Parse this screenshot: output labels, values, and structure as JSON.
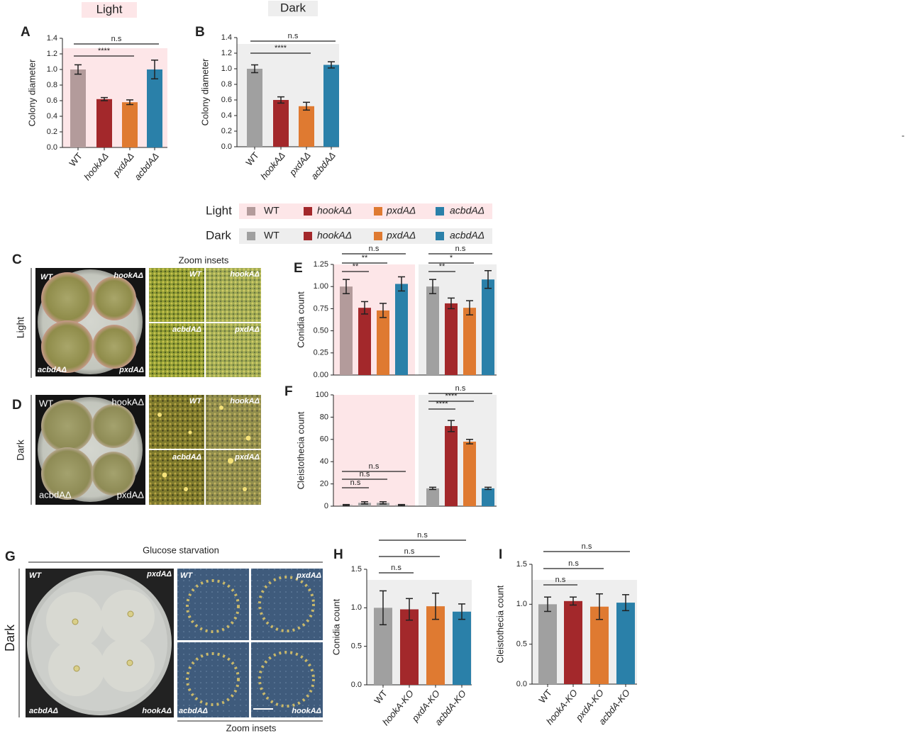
{
  "headers": [
    "Light",
    "Dark"
  ],
  "stray": "-",
  "legend": {
    "rows": [
      {
        "label": "Light",
        "background": "#fde6e8",
        "entries": [
          {
            "name": "WT",
            "color": "#b39b9b"
          },
          {
            "name": "hookAΔ",
            "color": "#a3282b"
          },
          {
            "name": "pxdAΔ",
            "color": "#df7a31"
          },
          {
            "name": "acbdAΔ",
            "color": "#2a80a9"
          }
        ]
      },
      {
        "label": "Dark",
        "background": "#eeeeee",
        "entries": [
          {
            "name": "WT",
            "color": "#a0a0a0"
          },
          {
            "name": "hookAΔ",
            "color": "#a3282b"
          },
          {
            "name": "pxdAΔ",
            "color": "#df7a31"
          },
          {
            "name": "acbdAΔ",
            "color": "#2a80a9"
          }
        ]
      }
    ]
  },
  "photos": {
    "C": {
      "panel": "C",
      "side": "Light",
      "plate": [
        "WT",
        "hookAΔ",
        "acbdAΔ",
        "pxdAΔ"
      ],
      "insets_title": "Zoom insets",
      "insets": [
        "WT",
        "hookAΔ",
        "acbdAΔ",
        "pxdAΔ"
      ]
    },
    "D": {
      "panel": "D",
      "side": "Dark",
      "plate": [
        "WT",
        "hookAΔ",
        "acbdAΔ",
        "pxdAΔ"
      ],
      "insets": [
        "WT",
        "hookAΔ",
        "acbdAΔ",
        "pxdAΔ"
      ]
    },
    "G": {
      "panel": "G",
      "title": "Glucose starvation",
      "side": "Dark",
      "plate": [
        "WT",
        "pxdAΔ",
        "acbdAΔ",
        "hookAΔ"
      ],
      "insets": [
        "WT",
        "pxdAΔ",
        "acbdAΔ",
        "hookAΔ"
      ],
      "insets_title": "Zoom insets"
    }
  },
  "chart_data": [
    {
      "type": "bar",
      "panel": "A",
      "ylabel": "Colony diameter",
      "categories": [
        "WT",
        "hookAΔ",
        "pxdAΔ",
        "acbdAΔ"
      ],
      "values": [
        1.0,
        0.62,
        0.58,
        1.0
      ],
      "errors": [
        0.06,
        0.02,
        0.03,
        0.12
      ],
      "colors": [
        "#b39b9b",
        "#a3282b",
        "#df7a31",
        "#2a80a9"
      ],
      "background": "#fde6e8",
      "ylim": [
        0,
        1.4
      ],
      "yticks": [
        {
          "value": 0,
          "label": "0.0"
        },
        0.2,
        0.4,
        0.6,
        0.8,
        {
          "value": 1,
          "label": "1.0"
        },
        1.2,
        1.4
      ],
      "annotations": [
        {
          "label": "n.s",
          "from": 0,
          "to": 3
        },
        {
          "label": "****",
          "from": 0,
          "to": 2
        }
      ]
    },
    {
      "type": "bar",
      "panel": "B",
      "ylabel": "Colony diameter",
      "categories": [
        "WT",
        "hookAΔ",
        "pxdAΔ",
        "acbdAΔ"
      ],
      "values": [
        1.0,
        0.6,
        0.52,
        1.05
      ],
      "errors": [
        0.05,
        0.04,
        0.05,
        0.04
      ],
      "colors": [
        "#a0a0a0",
        "#a3282b",
        "#df7a31",
        "#2a80a9"
      ],
      "background": "#eeeeee",
      "ylim": [
        0,
        1.4
      ],
      "yticks": [
        {
          "value": 0,
          "label": "0.0"
        },
        0.2,
        0.4,
        0.6,
        0.8,
        {
          "value": 1,
          "label": "1.0"
        },
        1.2,
        1.4
      ],
      "annotations": [
        {
          "label": "n.s",
          "from": 0,
          "to": 3
        },
        {
          "label": "****",
          "from": 0,
          "to": 2
        }
      ]
    },
    {
      "type": "grouped_bar",
      "panel": "E",
      "ylabel": "Conidia count",
      "ylim": [
        0,
        1.25
      ],
      "yticks": [
        {
          "value": 0,
          "label": "0.00"
        },
        0.25,
        {
          "value": 0.5,
          "label": "0.50"
        },
        0.75,
        {
          "value": 1,
          "label": "1.00"
        },
        1.25
      ],
      "series": [
        {
          "values": [
            1.0,
            0.76,
            0.73,
            1.03
          ],
          "errors": [
            0.08,
            0.07,
            0.08,
            0.08
          ],
          "colors": [
            "#b39b9b",
            "#a3282b",
            "#df7a31",
            "#2a80a9"
          ],
          "background": "#fde6e8",
          "annotations": [
            {
              "label": "n.s",
              "from": 0,
              "to": 3
            },
            {
              "label": "**",
              "from": 0,
              "to": 1
            },
            {
              "label": "**",
              "from": 0,
              "to": 2
            }
          ]
        },
        {
          "values": [
            1.0,
            0.81,
            0.76,
            1.08
          ],
          "errors": [
            0.08,
            0.06,
            0.08,
            0.1
          ],
          "colors": [
            "#a0a0a0",
            "#a3282b",
            "#df7a31",
            "#2a80a9"
          ],
          "background": "#eeeeee",
          "annotations": [
            {
              "label": "n.s",
              "from": 0,
              "to": 3
            },
            {
              "label": "**",
              "from": 0,
              "to": 1
            },
            {
              "label": "*",
              "from": 0,
              "to": 2
            }
          ]
        }
      ]
    },
    {
      "type": "grouped_bar",
      "panel": "F",
      "ylabel": "Cleistothecia count",
      "ylim": [
        0,
        100
      ],
      "yticks": [
        0,
        20,
        40,
        60,
        80,
        100
      ],
      "series": [
        {
          "values": [
            1,
            3,
            3,
            1
          ],
          "errors": [
            0.5,
            1,
            1,
            0.5
          ],
          "colors": [
            "#a0a0a0",
            "#a0a0a0",
            "#a0a0a0",
            "#a0a0a0"
          ],
          "background": "#fde6e8",
          "annotations": [
            {
              "label": "n.s",
              "from": 0,
              "to": 1
            },
            {
              "label": "n.s",
              "from": 0,
              "to": 2
            },
            {
              "label": "n.s",
              "from": 0,
              "to": 3
            }
          ]
        },
        {
          "values": [
            16,
            72,
            58,
            16
          ],
          "errors": [
            1,
            5,
            2,
            1
          ],
          "colors": [
            "#a0a0a0",
            "#a3282b",
            "#df7a31",
            "#2a80a9"
          ],
          "background": "#eeeeee",
          "annotations": [
            {
              "label": "****",
              "from": 0,
              "to": 1
            },
            {
              "label": "****",
              "from": 0,
              "to": 2
            },
            {
              "label": "n.s",
              "from": 0,
              "to": 3
            }
          ]
        }
      ]
    },
    {
      "type": "bar",
      "panel": "H",
      "ylabel": "Conidia count",
      "categories": [
        "WT",
        "hookA-KO",
        "pxdA-KO",
        "acbdA-KO"
      ],
      "values": [
        1.0,
        0.98,
        1.02,
        0.95
      ],
      "errors": [
        0.22,
        0.14,
        0.17,
        0.1
      ],
      "colors": [
        "#a0a0a0",
        "#a3282b",
        "#df7a31",
        "#2a80a9"
      ],
      "background": "#eeeeee",
      "ylim": [
        0,
        1.5
      ],
      "yticks": [
        {
          "value": 0,
          "label": "0.0"
        },
        0.5,
        {
          "value": 1,
          "label": "1.0"
        },
        1.5
      ],
      "annotations": [
        {
          "label": "n.s",
          "from": 0,
          "to": 1
        },
        {
          "label": "n.s",
          "from": 0,
          "to": 2
        },
        {
          "label": "n.s",
          "from": 0,
          "to": 3
        }
      ]
    },
    {
      "type": "bar",
      "panel": "I",
      "ylabel": "Cleistothecia count",
      "categories": [
        "WT",
        "hookA-KO",
        "pxdA-KO",
        "acbdA-KO"
      ],
      "values": [
        1.0,
        1.04,
        0.97,
        1.02
      ],
      "errors": [
        0.09,
        0.05,
        0.16,
        0.1
      ],
      "colors": [
        "#a0a0a0",
        "#a3282b",
        "#df7a31",
        "#2a80a9"
      ],
      "background": "#eeeeee",
      "ylim": [
        0,
        1.5
      ],
      "yticks": [
        {
          "value": 0,
          "label": "0.0"
        },
        0.5,
        {
          "value": 1,
          "label": "1.0"
        },
        1.5
      ],
      "annotations": [
        {
          "label": "n.s",
          "from": 0,
          "to": 1
        },
        {
          "label": "n.s",
          "from": 0,
          "to": 2
        },
        {
          "label": "n.s",
          "from": 0,
          "to": 3
        }
      ]
    }
  ]
}
